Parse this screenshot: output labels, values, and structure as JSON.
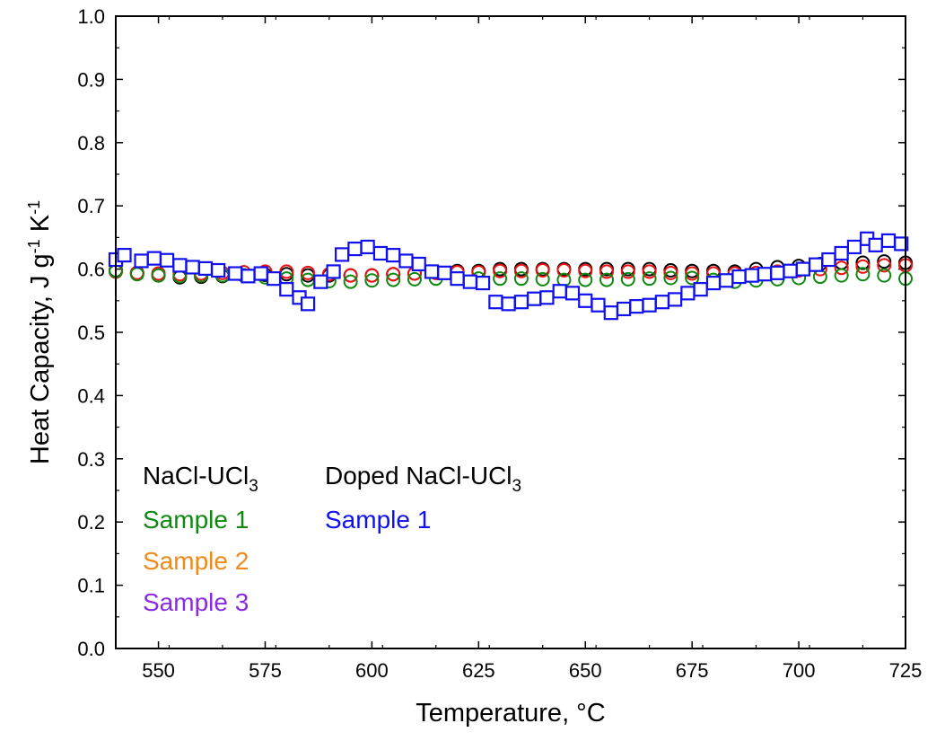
{
  "chart_data": {
    "type": "scatter",
    "xlabel": "Temperature, °C",
    "ylabel": {
      "main": "Heat Capacity, J g",
      "sup1": "-1",
      "mid": " K",
      "sup2": "-1"
    },
    "xlim": [
      540,
      725
    ],
    "ylim": [
      0.0,
      1.0
    ],
    "x_ticks": [
      "550",
      "575",
      "600",
      "625",
      "650",
      "675",
      "700",
      "725"
    ],
    "y_ticks": [
      "0.0",
      "0.1",
      "0.2",
      "0.3",
      "0.4",
      "0.5",
      "0.6",
      "0.7",
      "0.8",
      "0.9",
      "1.0"
    ],
    "legend": {
      "group1_title": {
        "main": "NaCl-UCl",
        "sub": "3"
      },
      "group1_items": [
        "Sample 1",
        "Sample 2",
        "Sample 3"
      ],
      "group2_title": {
        "main": "Doped NaCl-UCl",
        "sub": "3"
      },
      "group2_items": [
        "Sample 1"
      ]
    },
    "series": [
      {
        "name": "Sample 3",
        "group": "NaCl-UCl3",
        "marker": "circle",
        "color": "#000000",
        "x": [
          540,
          545,
          550,
          555,
          560,
          565,
          570,
          575,
          580,
          585,
          590,
          595,
          600,
          605,
          610,
          615,
          620,
          625,
          630,
          635,
          640,
          645,
          650,
          655,
          660,
          665,
          670,
          675,
          680,
          685,
          690,
          695,
          700,
          705,
          710,
          715,
          720,
          725
        ],
        "y": [
          0.598,
          0.594,
          0.59,
          0.587,
          0.588,
          0.589,
          0.59,
          0.591,
          0.592,
          0.59,
          0.59,
          0.59,
          0.59,
          0.592,
          0.593,
          0.595,
          0.597,
          0.597,
          0.6,
          0.6,
          0.6,
          0.6,
          0.6,
          0.6,
          0.6,
          0.6,
          0.598,
          0.597,
          0.597,
          0.596,
          0.6,
          0.603,
          0.605,
          0.608,
          0.61,
          0.61,
          0.612,
          0.61
        ]
      },
      {
        "name": "Sample 2",
        "group": "NaCl-UCl3",
        "marker": "circle",
        "color": "#ee1111",
        "x": [
          540,
          545,
          550,
          555,
          560,
          565,
          570,
          575,
          580,
          585,
          590,
          595,
          600,
          605,
          610,
          615,
          620,
          625,
          630,
          635,
          640,
          645,
          650,
          655,
          660,
          665,
          670,
          675,
          680,
          685,
          690,
          695,
          700,
          705,
          710,
          715,
          720,
          725
        ],
        "y": [
          0.596,
          0.594,
          0.593,
          0.592,
          0.593,
          0.594,
          0.595,
          0.596,
          0.596,
          0.594,
          0.592,
          0.59,
          0.59,
          0.592,
          0.593,
          0.594,
          0.595,
          0.595,
          0.597,
          0.597,
          0.598,
          0.598,
          0.597,
          0.596,
          0.596,
          0.596,
          0.594,
          0.593,
          0.593,
          0.593,
          0.594,
          0.596,
          0.598,
          0.6,
          0.602,
          0.604,
          0.606,
          0.606
        ]
      },
      {
        "name": "Sample 1",
        "group": "NaCl-UCl3",
        "marker": "circle",
        "color": "#118811",
        "x": [
          540,
          545,
          550,
          555,
          560,
          565,
          570,
          575,
          580,
          585,
          590,
          595,
          600,
          605,
          610,
          615,
          620,
          625,
          630,
          635,
          640,
          645,
          650,
          655,
          660,
          665,
          670,
          675,
          680,
          685,
          690,
          695,
          700,
          705,
          710,
          715,
          720,
          725
        ],
        "y": [
          0.597,
          0.592,
          0.59,
          0.589,
          0.59,
          0.59,
          0.59,
          0.587,
          0.585,
          0.583,
          0.581,
          0.58,
          0.582,
          0.583,
          0.584,
          0.585,
          0.585,
          0.585,
          0.585,
          0.585,
          0.584,
          0.583,
          0.583,
          0.583,
          0.584,
          0.585,
          0.586,
          0.586,
          0.583,
          0.58,
          0.582,
          0.584,
          0.586,
          0.588,
          0.59,
          0.592,
          0.59,
          0.585
        ]
      },
      {
        "name": "Sample 1",
        "group": "Doped NaCl-UCl3",
        "marker": "square",
        "color": "#1111ee",
        "x": [
          540,
          542,
          546,
          549,
          552,
          555,
          558,
          561,
          564,
          568,
          571,
          574,
          577,
          580,
          583,
          585,
          588,
          591,
          593,
          596,
          599,
          602,
          605,
          608,
          611,
          614,
          617,
          620,
          623,
          626,
          629,
          632,
          635,
          638,
          641,
          644,
          647,
          650,
          653,
          656,
          659,
          662,
          665,
          668,
          671,
          674,
          677,
          680,
          683,
          686,
          689,
          692,
          695,
          698,
          701,
          704,
          707,
          710,
          713,
          716,
          718,
          721,
          724
        ],
        "y": [
          0.615,
          0.622,
          0.613,
          0.617,
          0.614,
          0.606,
          0.603,
          0.601,
          0.598,
          0.593,
          0.589,
          0.593,
          0.585,
          0.568,
          0.555,
          0.545,
          0.58,
          0.596,
          0.623,
          0.632,
          0.635,
          0.625,
          0.622,
          0.613,
          0.608,
          0.596,
          0.594,
          0.585,
          0.58,
          0.578,
          0.548,
          0.545,
          0.548,
          0.553,
          0.555,
          0.565,
          0.562,
          0.55,
          0.543,
          0.531,
          0.537,
          0.541,
          0.543,
          0.548,
          0.552,
          0.562,
          0.568,
          0.578,
          0.582,
          0.588,
          0.59,
          0.592,
          0.594,
          0.597,
          0.6,
          0.607,
          0.615,
          0.625,
          0.635,
          0.648,
          0.638,
          0.645,
          0.64
        ]
      }
    ]
  }
}
